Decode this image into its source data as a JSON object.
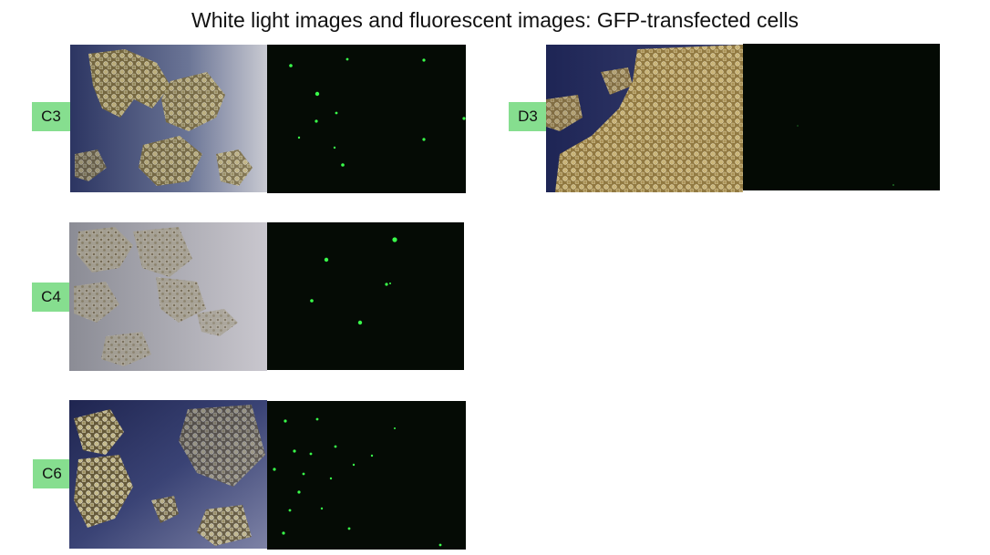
{
  "slide": {
    "title": "White light images and fluorescent images: GFP-transfected cells"
  },
  "panels": [
    {
      "label": "C3"
    },
    {
      "label": "C4"
    },
    {
      "label": "C6"
    },
    {
      "label": "D3"
    }
  ],
  "colors": {
    "label_bg": "#86de8f",
    "fluor_bg": "#050b05",
    "gfp": "#39ff4a"
  }
}
